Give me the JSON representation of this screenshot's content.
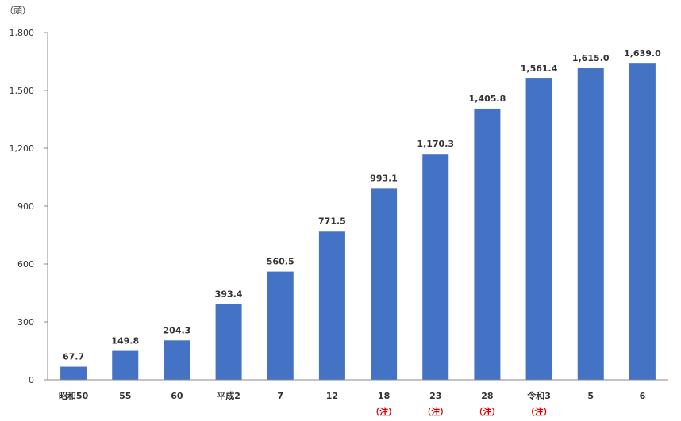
{
  "chart_data": {
    "type": "bar",
    "unit_label": "（頭）",
    "categories": [
      "昭和50",
      "55",
      "60",
      "平成2",
      "7",
      "12",
      "18",
      "23",
      "28",
      "令和3",
      "5",
      "6"
    ],
    "category_notes": [
      "",
      "",
      "",
      "",
      "",
      "",
      "（注）",
      "（注）",
      "（注）",
      "（注）",
      "",
      ""
    ],
    "values": [
      67.7,
      149.8,
      204.3,
      393.4,
      560.5,
      771.5,
      993.1,
      1170.3,
      1405.8,
      1561.4,
      1615.0,
      1639.0
    ],
    "value_labels": [
      "67.7",
      "149.8",
      "204.3",
      "393.4",
      "560.5",
      "771.5",
      "993.1",
      "1,170.3",
      "1,405.8",
      "1,561.4",
      "1,615.0",
      "1,639.0"
    ],
    "ylim": [
      0,
      1800
    ],
    "yticks": [
      0,
      300,
      600,
      900,
      1200,
      1500,
      1800
    ],
    "ytick_labels": [
      "0",
      "300",
      "600",
      "900",
      "1,200",
      "1,500",
      "1,800"
    ],
    "grid": false,
    "bar_color": "#4472C4",
    "note_color": "#E00000"
  }
}
